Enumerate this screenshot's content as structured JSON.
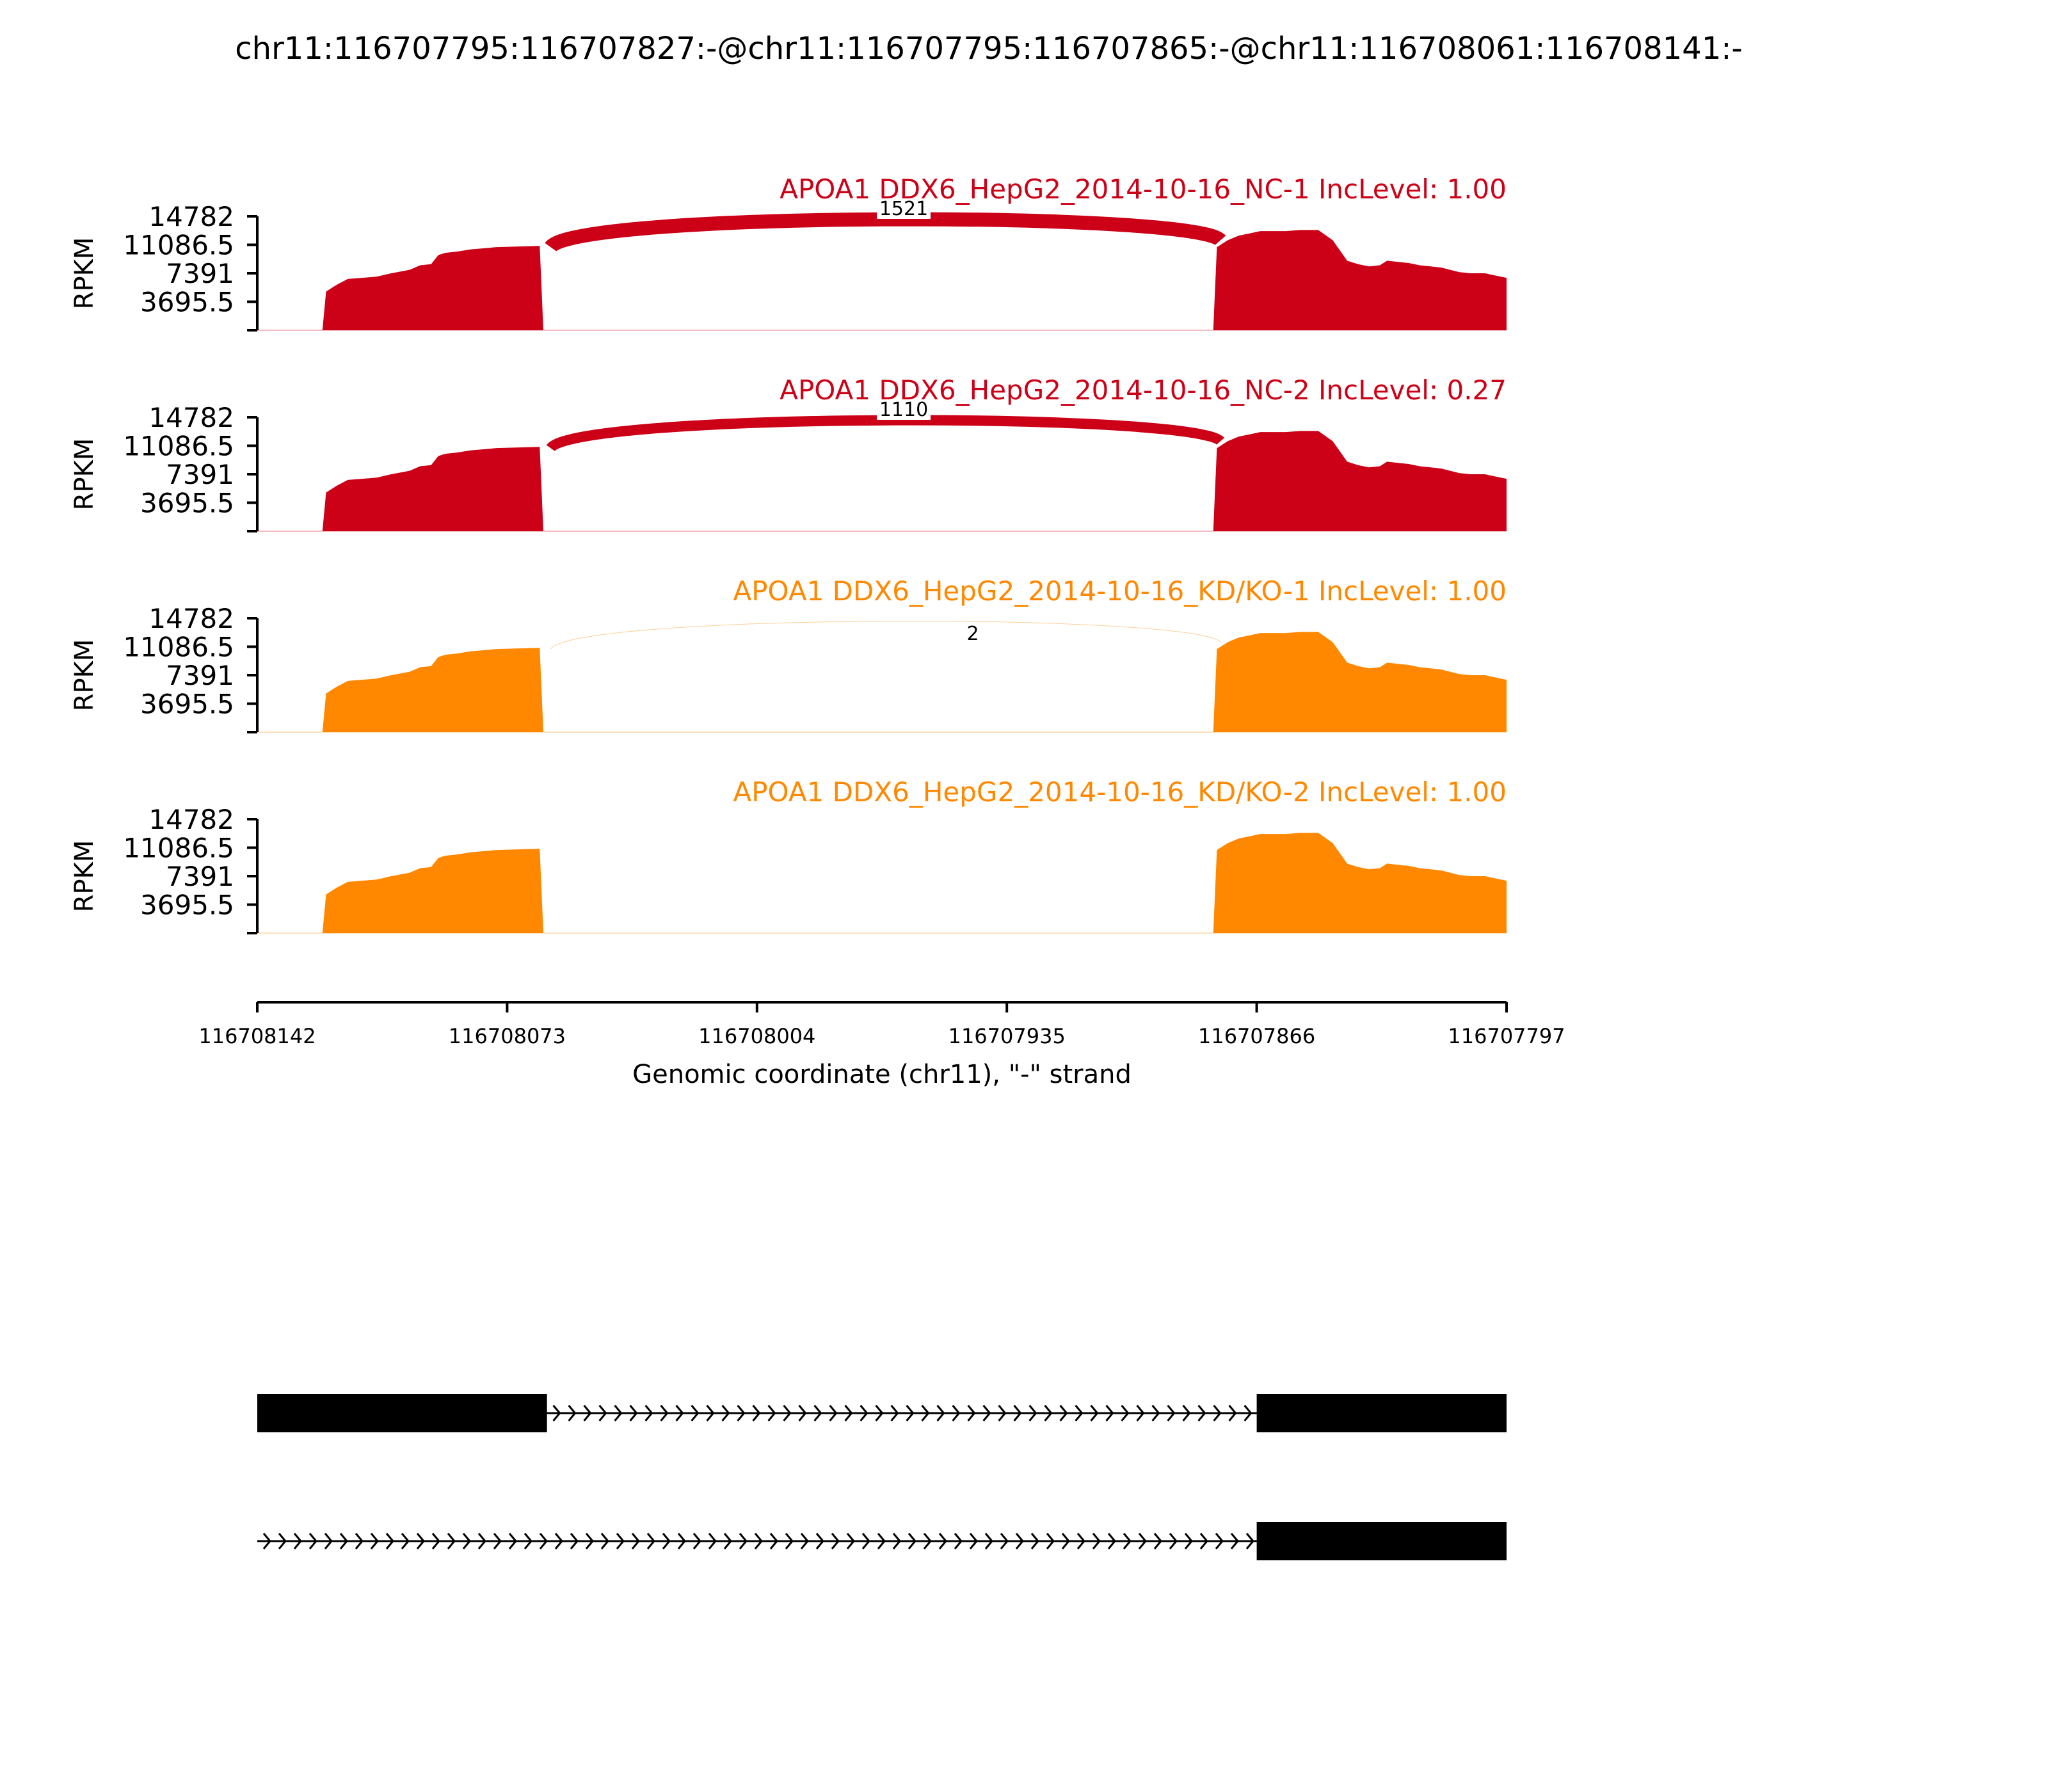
{
  "title": "chr11:116707795:116707827:-@chr11:116707795:116707865:-@chr11:116708061:116708141:-",
  "colors": {
    "nc": "#cc0016",
    "kd": "#ff8800",
    "axis": "#000000",
    "gene": "#000000"
  },
  "chart_data": {
    "type": "area",
    "title": "chr11:116707795:116707827:-@chr11:116707795:116707865:-@chr11:116708061:116708141:-",
    "xlabel": "Genomic coordinate (chr11), \"-\" strand",
    "ylabel": "RPKM",
    "x_ticks": [
      "116708142",
      "116708073",
      "116708004",
      "116707935",
      "116707866",
      "116707797"
    ],
    "x_tick_values": [
      116708142,
      116708073,
      116708004,
      116707935,
      116707866,
      116707797
    ],
    "xlim": [
      116708142,
      116707797
    ],
    "x_reversed": true,
    "y_ticks": [
      "3695.5",
      "7391",
      "11086.5",
      "14782"
    ],
    "ylim": [
      0,
      14782
    ],
    "coverage_profile": {
      "coords": [
        116708142,
        116708124,
        116708123,
        116708120,
        116708117,
        116708113,
        116708109,
        116708105,
        116708100,
        116708097,
        116708094,
        116708092,
        116708090,
        116708087,
        116708083,
        116708079,
        116708076,
        116708064,
        116708063,
        116707878,
        116707877,
        116707874,
        116707871,
        116707868,
        116707865,
        116707862,
        116707858,
        116707854,
        116707849,
        116707845,
        116707843,
        116707841,
        116707838,
        116707835,
        116707832,
        116707830,
        116707827,
        116707824,
        116707821,
        116707818,
        116707815,
        116707810,
        116707807,
        116707803,
        116707800,
        116707797
      ],
      "relative_values": [
        0,
        0,
        0.34,
        0.4,
        0.45,
        0.46,
        0.47,
        0.5,
        0.53,
        0.57,
        0.58,
        0.66,
        0.68,
        0.69,
        0.71,
        0.72,
        0.73,
        0.74,
        0,
        0,
        0.73,
        0.79,
        0.83,
        0.85,
        0.87,
        0.87,
        0.87,
        0.88,
        0.88,
        0.79,
        0.7,
        0.61,
        0.58,
        0.56,
        0.57,
        0.61,
        0.6,
        0.59,
        0.57,
        0.56,
        0.55,
        0.51,
        0.5,
        0.5,
        0.48,
        0.46
      ]
    },
    "series": [
      {
        "label": "APOA1 DDX6_HepG2_2014-10-16_NC-1 IncLevel: 1.00",
        "group": "nc",
        "scale": 1.0,
        "junction_count": "1521",
        "junction_width": 1.0
      },
      {
        "label": "APOA1 DDX6_HepG2_2014-10-16_NC-2 IncLevel: 0.27",
        "group": "nc",
        "scale": 1.0,
        "junction_count": "1110",
        "junction_width": 0.73
      },
      {
        "label": "APOA1 DDX6_HepG2_2014-10-16_KD/KO-1 IncLevel: 1.00",
        "group": "kd",
        "scale": 1.0,
        "junction_count": "2",
        "junction_width": 0.02
      },
      {
        "label": "APOA1 DDX6_HepG2_2014-10-16_KD/KO-2 IncLevel: 1.00",
        "group": "kd",
        "scale": 1.0,
        "junction_count": "",
        "junction_width": 0
      }
    ],
    "junction": {
      "start": 116708061,
      "end": 116707876
    },
    "isoforms": [
      {
        "exons": [
          [
            116708142,
            116708062
          ],
          [
            116707866,
            116707797
          ]
        ],
        "intron": [
          116708062,
          116707866
        ]
      },
      {
        "exons": [
          [
            116707866,
            116707797
          ]
        ],
        "intron": [
          116708142,
          116707866
        ]
      }
    ]
  }
}
